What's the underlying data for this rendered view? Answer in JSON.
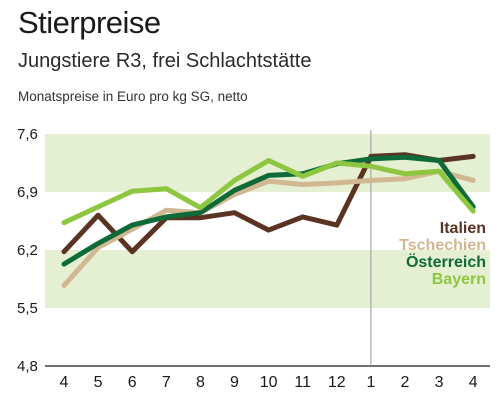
{
  "chart_data": {
    "type": "line",
    "title": "Stierpreise",
    "subtitle": "Jungstiere R3, frei Schlachtstätte",
    "ylabel": "Monatspreise in Euro pro kg SG, netto",
    "ylim": [
      4.8,
      7.6
    ],
    "yticks": [
      "7,6",
      "6,9",
      "6,2",
      "5,5",
      "4,8"
    ],
    "ytick_values": [
      7.6,
      6.9,
      6.2,
      5.5,
      4.8
    ],
    "categories": [
      "4",
      "5",
      "6",
      "7",
      "8",
      "9",
      "10",
      "11",
      "12",
      "1",
      "2",
      "3",
      "4"
    ],
    "year_divider_after_index": 8,
    "bands": [
      [
        6.9,
        7.6
      ],
      [
        5.5,
        6.2
      ]
    ],
    "legend_position": "right",
    "series": [
      {
        "name": "Italien",
        "color": "#5a3322",
        "values": [
          6.18,
          6.62,
          6.18,
          6.59,
          6.59,
          6.65,
          6.44,
          6.6,
          6.5,
          7.33,
          7.35,
          7.28,
          7.33
        ]
      },
      {
        "name": "Tschechien",
        "color": "#d2b793",
        "values": [
          5.77,
          6.23,
          6.45,
          6.68,
          6.65,
          6.87,
          7.03,
          6.99,
          7.01,
          7.04,
          7.06,
          7.15,
          7.04
        ]
      },
      {
        "name": "Österreich",
        "color": "#0e6b37",
        "values": [
          6.03,
          6.28,
          6.5,
          6.6,
          6.65,
          6.92,
          7.1,
          7.12,
          7.24,
          7.3,
          7.32,
          7.28,
          6.72
        ]
      },
      {
        "name": "Bayern",
        "color": "#8dc63f",
        "values": [
          6.53,
          6.72,
          6.91,
          6.94,
          6.71,
          7.04,
          7.28,
          7.09,
          7.25,
          7.21,
          7.12,
          7.15,
          6.67
        ]
      }
    ]
  }
}
